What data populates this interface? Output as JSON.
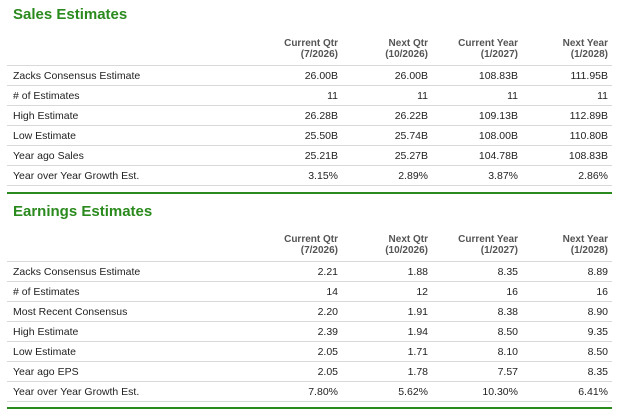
{
  "sales": {
    "title": "Sales Estimates",
    "columns": [
      {
        "name": "Current Qtr",
        "date": "(7/2026)"
      },
      {
        "name": "Next Qtr",
        "date": "(10/2026)"
      },
      {
        "name": "Current Year",
        "date": "(1/2027)"
      },
      {
        "name": "Next Year",
        "date": "(1/2028)"
      }
    ],
    "rows": [
      {
        "label": "Zacks Consensus Estimate",
        "values": [
          "26.00B",
          "26.00B",
          "108.83B",
          "111.95B"
        ]
      },
      {
        "label": "# of Estimates",
        "values": [
          "11",
          "11",
          "11",
          "11"
        ]
      },
      {
        "label": "High Estimate",
        "values": [
          "26.28B",
          "26.22B",
          "109.13B",
          "112.89B"
        ]
      },
      {
        "label": "Low Estimate",
        "values": [
          "25.50B",
          "25.74B",
          "108.00B",
          "110.80B"
        ]
      },
      {
        "label": "Year ago Sales",
        "values": [
          "25.21B",
          "25.27B",
          "104.78B",
          "108.83B"
        ]
      },
      {
        "label": "Year over Year Growth Est.",
        "values": [
          "3.15%",
          "2.89%",
          "3.87%",
          "2.86%"
        ]
      }
    ]
  },
  "earnings": {
    "title": "Earnings Estimates",
    "columns": [
      {
        "name": "Current Qtr",
        "date": "(7/2026)"
      },
      {
        "name": "Next Qtr",
        "date": "(10/2026)"
      },
      {
        "name": "Current Year",
        "date": "(1/2027)"
      },
      {
        "name": "Next Year",
        "date": "(1/2028)"
      }
    ],
    "rows": [
      {
        "label": "Zacks Consensus Estimate",
        "values": [
          "2.21",
          "1.88",
          "8.35",
          "8.89"
        ]
      },
      {
        "label": "# of Estimates",
        "values": [
          "14",
          "12",
          "16",
          "16"
        ]
      },
      {
        "label": "Most Recent Consensus",
        "values": [
          "2.20",
          "1.91",
          "8.38",
          "8.90"
        ]
      },
      {
        "label": "High Estimate",
        "values": [
          "2.39",
          "1.94",
          "8.50",
          "9.35"
        ]
      },
      {
        "label": "Low Estimate",
        "values": [
          "2.05",
          "1.71",
          "8.10",
          "8.50"
        ]
      },
      {
        "label": "Year ago EPS",
        "values": [
          "2.05",
          "1.78",
          "7.57",
          "8.35"
        ]
      },
      {
        "label": "Year over Year Growth Est.",
        "values": [
          "7.80%",
          "5.62%",
          "10.30%",
          "6.41%"
        ]
      }
    ]
  },
  "colors": {
    "title_green": "#2b8a1e",
    "rule_green": "#2b8a1e",
    "row_border": "#d9d9d9"
  }
}
